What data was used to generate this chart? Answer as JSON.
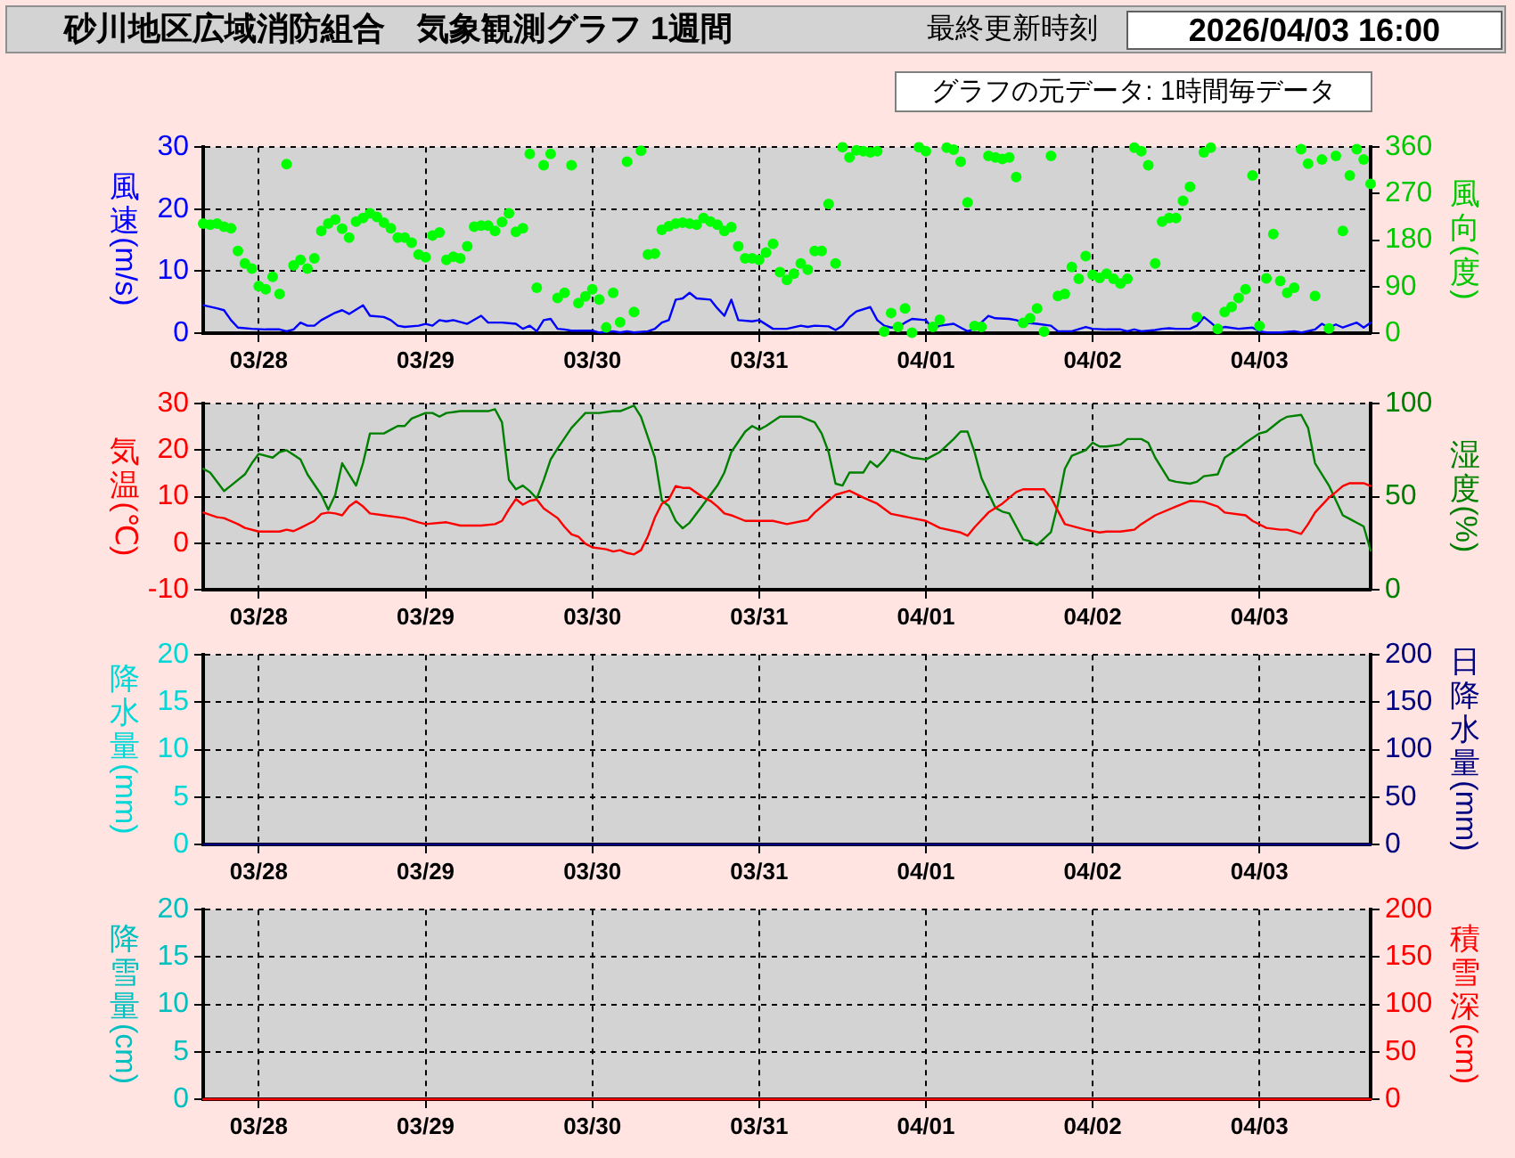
{
  "chart_data": [
    {
      "type": "line",
      "title": "砂川地区広域消防組合　気象観測グラフ 1週間",
      "annotations": [
        "最終更新時刻",
        "2026/04/03 16:00",
        "グラフの元データ: 1時間毎データ"
      ],
      "ylabel": "風速(m/s)",
      "y2label": "風向(度)",
      "xlim": [
        "2026-03-27T16:00",
        "2026-04-03T16:00"
      ],
      "xticks": [
        {
          "value": "2026-03-28",
          "label": "03/28"
        },
        {
          "value": "2026-03-29",
          "label": "03/29"
        },
        {
          "value": "2026-03-30",
          "label": "03/30"
        },
        {
          "value": "2026-03-31",
          "label": "03/31"
        },
        {
          "value": "2026-04-01",
          "label": "04/01"
        },
        {
          "value": "2026-04-02",
          "label": "04/02"
        },
        {
          "value": "2026-04-03",
          "label": "04/03"
        }
      ],
      "ylim": [
        0,
        30
      ],
      "yticks": [
        0,
        10,
        20,
        30
      ],
      "y2lim": [
        0,
        360
      ],
      "y2ticks": [
        0,
        90,
        180,
        270,
        360
      ],
      "grid": true,
      "series": [
        {
          "color": "#0000ff",
          "x": [
            "2026-03-27T16:00",
            "2026-03-27T18:00",
            "2026-03-27T19:00",
            "2026-03-27T20:00",
            "2026-03-27T21:00",
            "2026-03-27T23:00",
            "2026-03-28T01:00",
            "2026-03-28T03:00",
            "2026-03-28T04:00",
            "2026-03-28T05:00",
            "2026-03-28T06:00",
            "2026-03-28T07:00",
            "2026-03-28T08:00",
            "2026-03-28T09:00",
            "2026-03-28T11:00",
            "2026-03-28T12:00",
            "2026-03-28T13:00",
            "2026-03-28T15:00",
            "2026-03-28T16:00",
            "2026-03-28T18:00",
            "2026-03-28T19:00",
            "2026-03-28T20:00",
            "2026-03-28T21:00",
            "2026-03-28T23:00",
            "2026-03-29T00:00",
            "2026-03-29T01:00",
            "2026-03-29T02:00",
            "2026-03-29T03:00",
            "2026-03-29T04:00",
            "2026-03-29T06:00",
            "2026-03-29T08:00",
            "2026-03-29T09:00",
            "2026-03-29T11:00",
            "2026-03-29T13:00",
            "2026-03-29T14:00",
            "2026-03-29T15:00",
            "2026-03-29T16:00",
            "2026-03-29T17:00",
            "2026-03-29T18:00",
            "2026-03-29T19:00",
            "2026-03-29T20:00",
            "2026-03-29T21:00",
            "2026-03-30T00:00",
            "2026-03-30T01:00",
            "2026-03-30T03:00",
            "2026-03-30T04:00",
            "2026-03-30T05:00",
            "2026-03-30T06:00",
            "2026-03-30T08:00",
            "2026-03-30T09:00",
            "2026-03-30T10:00",
            "2026-03-30T11:00",
            "2026-03-30T12:00",
            "2026-03-30T13:00",
            "2026-03-30T14:00",
            "2026-03-30T15:00",
            "2026-03-30T17:00",
            "2026-03-30T18:00",
            "2026-03-30T19:00",
            "2026-03-30T20:00",
            "2026-03-30T21:00",
            "2026-03-30T23:00",
            "2026-03-31T00:00",
            "2026-03-31T02:00",
            "2026-03-31T04:00",
            "2026-03-31T06:00",
            "2026-03-31T07:00",
            "2026-03-31T08:00",
            "2026-03-31T10:00",
            "2026-03-31T11:00",
            "2026-03-31T12:00",
            "2026-03-31T13:00",
            "2026-03-31T14:00",
            "2026-03-31T16:00",
            "2026-03-31T17:00",
            "2026-03-31T18:00",
            "2026-03-31T19:00",
            "2026-03-31T20:00",
            "2026-03-31T21:00",
            "2026-03-31T22:00",
            "2026-04-01T00:00",
            "2026-04-01T01:00",
            "2026-04-01T02:00",
            "2026-04-01T04:00",
            "2026-04-01T05:00",
            "2026-04-01T06:00",
            "2026-04-01T07:00",
            "2026-04-01T09:00",
            "2026-04-01T10:00",
            "2026-04-01T12:00",
            "2026-04-01T13:00",
            "2026-04-01T14:00",
            "2026-04-01T16:00",
            "2026-04-01T18:00",
            "2026-04-01T19:00",
            "2026-04-01T21:00",
            "2026-04-01T23:00",
            "2026-04-02T00:00",
            "2026-04-02T02:00",
            "2026-04-02T04:00",
            "2026-04-02T05:00",
            "2026-04-02T06:00",
            "2026-04-02T07:00",
            "2026-04-02T09:00",
            "2026-04-02T10:00",
            "2026-04-02T11:00",
            "2026-04-02T12:00",
            "2026-04-02T14:00",
            "2026-04-02T15:00",
            "2026-04-02T16:00",
            "2026-04-02T17:00",
            "2026-04-02T18:00",
            "2026-04-02T19:00",
            "2026-04-02T21:00",
            "2026-04-02T23:00",
            "2026-04-03T00:00",
            "2026-04-03T01:00",
            "2026-04-03T03:00",
            "2026-04-03T05:00",
            "2026-04-03T06:00",
            "2026-04-03T08:00",
            "2026-04-03T09:00",
            "2026-04-03T10:00",
            "2026-04-03T11:00",
            "2026-04-03T12:00",
            "2026-04-03T14:00",
            "2026-04-03T15:00",
            "2026-04-03T16:00"
          ],
          "values": [
            4.5,
            4.0,
            3.7,
            2.1,
            0.9,
            0.7,
            0.6,
            0.6,
            0.3,
            0.6,
            1.7,
            1.2,
            1.2,
            2.1,
            3.3,
            3.7,
            3.1,
            4.5,
            2.8,
            2.6,
            2.1,
            1.2,
            1.0,
            1.2,
            1.5,
            1.2,
            2.1,
            1.9,
            2.1,
            1.5,
            2.8,
            1.7,
            1.7,
            1.5,
            0.7,
            1.2,
            0.3,
            2.1,
            2.3,
            0.7,
            0.6,
            0.4,
            0.4,
            0.1,
            0.3,
            0.1,
            0.3,
            0.1,
            0.3,
            0.7,
            1.7,
            2.1,
            5.4,
            5.6,
            6.5,
            5.6,
            5.4,
            4.0,
            2.8,
            5.4,
            2.1,
            1.9,
            2.1,
            0.7,
            0.7,
            1.2,
            1.0,
            1.2,
            1.1,
            0.5,
            1.2,
            2.6,
            3.5,
            4.2,
            2.1,
            1.2,
            0.9,
            1.0,
            1.7,
            2.3,
            2.1,
            0.7,
            1.2,
            1.5,
            0.9,
            0.3,
            0.7,
            2.8,
            2.4,
            2.3,
            2.1,
            1.7,
            1.5,
            1.2,
            0.3,
            0.3,
            1.0,
            0.7,
            0.6,
            0.6,
            0.3,
            0.6,
            0.3,
            0.5,
            0.7,
            0.8,
            0.7,
            0.7,
            1.2,
            2.6,
            1.7,
            0.7,
            1.0,
            0.7,
            0.9,
            0.3,
            0.1,
            0.1,
            0.3,
            0.1,
            0.6,
            1.5,
            0.9,
            1.4,
            0.9,
            1.7,
            0.9,
            1.7
          ]
        },
        {
          "type": "scatter",
          "axis": "y2",
          "marker": "circle",
          "color": "#00ff00",
          "x": [
            "2026-03-27T16:00",
            "2026-03-27T17:00",
            "2026-03-27T18:00",
            "2026-03-27T19:00",
            "2026-03-27T20:00",
            "2026-03-27T21:00",
            "2026-03-27T22:00",
            "2026-03-27T23:00",
            "2026-03-28T00:00",
            "2026-03-28T01:00",
            "2026-03-28T02:00",
            "2026-03-28T03:00",
            "2026-03-28T04:00",
            "2026-03-28T05:00",
            "2026-03-28T06:00",
            "2026-03-28T07:00",
            "2026-03-28T08:00",
            "2026-03-28T09:00",
            "2026-03-28T10:00",
            "2026-03-28T11:00",
            "2026-03-28T12:00",
            "2026-03-28T13:00",
            "2026-03-28T14:00",
            "2026-03-28T15:00",
            "2026-03-28T16:00",
            "2026-03-28T17:00",
            "2026-03-28T18:00",
            "2026-03-28T19:00",
            "2026-03-28T20:00",
            "2026-03-28T21:00",
            "2026-03-28T22:00",
            "2026-03-28T23:00",
            "2026-03-29T00:00",
            "2026-03-29T01:00",
            "2026-03-29T02:00",
            "2026-03-29T03:00",
            "2026-03-29T04:00",
            "2026-03-29T05:00",
            "2026-03-29T06:00",
            "2026-03-29T07:00",
            "2026-03-29T08:00",
            "2026-03-29T09:00",
            "2026-03-29T10:00",
            "2026-03-29T11:00",
            "2026-03-29T12:00",
            "2026-03-29T13:00",
            "2026-03-29T14:00",
            "2026-03-29T15:00",
            "2026-03-29T16:00",
            "2026-03-29T17:00",
            "2026-03-29T18:00",
            "2026-03-29T19:00",
            "2026-03-29T20:00",
            "2026-03-29T21:00",
            "2026-03-29T22:00",
            "2026-03-29T23:00",
            "2026-03-30T00:00",
            "2026-03-30T01:00",
            "2026-03-30T02:00",
            "2026-03-30T03:00",
            "2026-03-30T04:00",
            "2026-03-30T05:00",
            "2026-03-30T06:00",
            "2026-03-30T07:00",
            "2026-03-30T08:00",
            "2026-03-30T09:00",
            "2026-03-30T10:00",
            "2026-03-30T11:00",
            "2026-03-30T12:00",
            "2026-03-30T13:00",
            "2026-03-30T14:00",
            "2026-03-30T15:00",
            "2026-03-30T16:00",
            "2026-03-30T17:00",
            "2026-03-30T18:00",
            "2026-03-30T19:00",
            "2026-03-30T20:00",
            "2026-03-30T21:00",
            "2026-03-30T22:00",
            "2026-03-30T23:00",
            "2026-03-31T00:00",
            "2026-03-31T01:00",
            "2026-03-31T02:00",
            "2026-03-31T03:00",
            "2026-03-31T04:00",
            "2026-03-31T05:00",
            "2026-03-31T06:00",
            "2026-03-31T07:00",
            "2026-03-31T08:00",
            "2026-03-31T09:00",
            "2026-03-31T10:00",
            "2026-03-31T11:00",
            "2026-03-31T12:00",
            "2026-03-31T13:00",
            "2026-03-31T14:00",
            "2026-03-31T15:00",
            "2026-03-31T16:00",
            "2026-03-31T17:00",
            "2026-03-31T18:00",
            "2026-03-31T19:00",
            "2026-03-31T20:00",
            "2026-03-31T21:00",
            "2026-03-31T22:00",
            "2026-03-31T23:00",
            "2026-04-01T00:00",
            "2026-04-01T01:00",
            "2026-04-01T02:00",
            "2026-04-01T03:00",
            "2026-04-01T04:00",
            "2026-04-01T05:00",
            "2026-04-01T06:00",
            "2026-04-01T07:00",
            "2026-04-01T08:00",
            "2026-04-01T09:00",
            "2026-04-01T10:00",
            "2026-04-01T11:00",
            "2026-04-01T12:00",
            "2026-04-01T13:00",
            "2026-04-01T14:00",
            "2026-04-01T15:00",
            "2026-04-01T16:00",
            "2026-04-01T17:00",
            "2026-04-01T18:00",
            "2026-04-01T19:00",
            "2026-04-01T20:00",
            "2026-04-01T21:00",
            "2026-04-01T22:00",
            "2026-04-01T23:00",
            "2026-04-02T00:00",
            "2026-04-02T01:00",
            "2026-04-02T02:00",
            "2026-04-02T03:00",
            "2026-04-02T04:00",
            "2026-04-02T05:00",
            "2026-04-02T06:00",
            "2026-04-02T07:00",
            "2026-04-02T08:00",
            "2026-04-02T09:00",
            "2026-04-02T10:00",
            "2026-04-02T11:00",
            "2026-04-02T12:00",
            "2026-04-02T13:00",
            "2026-04-02T14:00",
            "2026-04-02T15:00",
            "2026-04-02T16:00",
            "2026-04-02T17:00",
            "2026-04-02T18:00",
            "2026-04-02T19:00",
            "2026-04-02T20:00",
            "2026-04-02T21:00",
            "2026-04-02T22:00",
            "2026-04-02T23:00",
            "2026-04-03T00:00",
            "2026-04-03T01:00",
            "2026-04-03T02:00",
            "2026-04-03T03:00",
            "2026-04-03T04:00",
            "2026-04-03T05:00",
            "2026-04-03T06:00",
            "2026-04-03T07:00",
            "2026-04-03T08:00",
            "2026-04-03T09:00",
            "2026-04-03T10:00",
            "2026-04-03T11:00",
            "2026-04-03T12:00",
            "2026-04-03T13:00",
            "2026-04-03T14:00",
            "2026-04-03T15:00",
            "2026-04-03T16:00"
          ],
          "values": [
            212,
            210,
            212,
            206,
            203,
            159,
            135,
            125,
            91,
            85,
            109,
            76,
            327,
            131,
            142,
            125,
            145,
            198,
            212,
            220,
            202,
            185,
            216,
            223,
            232,
            225,
            214,
            203,
            185,
            185,
            175,
            152,
            147,
            189,
            195,
            142,
            148,
            145,
            168,
            206,
            208,
            208,
            198,
            215,
            232,
            196,
            203,
            347,
            88,
            325,
            347,
            68,
            78,
            325,
            58,
            71,
            85,
            65,
            11,
            78,
            21,
            332,
            41,
            353,
            152,
            154,
            200,
            207,
            212,
            214,
            212,
            210,
            223,
            216,
            210,
            198,
            205,
            168,
            145,
            145,
            142,
            156,
            173,
            118,
            103,
            115,
            135,
            123,
            159,
            159,
            250,
            135,
            360,
            340,
            354,
            352,
            350,
            352,
            3,
            39,
            12,
            48,
            1,
            360,
            352,
            12,
            26,
            359,
            355,
            332,
            253,
            14,
            12,
            343,
            340,
            337,
            340,
            302,
            20,
            29,
            48,
            3,
            343,
            72,
            76,
            128,
            105,
            149,
            113,
            107,
            115,
            105,
            96,
            105,
            359,
            352,
            325,
            135,
            216,
            223,
            223,
            256,
            283,
            31,
            350,
            359,
            8,
            41,
            51,
            68,
            85,
            305,
            14,
            106,
            192,
            101,
            78,
            88,
            356,
            328,
            72,
            336,
            9,
            343,
            198,
            305,
            356,
            336,
            289
          ]
        }
      ]
    },
    {
      "type": "line",
      "ylabel": "気温(℃)",
      "y2label": "湿度(%)",
      "xlim": [
        "2026-03-27T16:00",
        "2026-04-03T16:00"
      ],
      "xticks": [
        {
          "value": "2026-03-28",
          "label": "03/28"
        },
        {
          "value": "2026-03-29",
          "label": "03/29"
        },
        {
          "value": "2026-03-30",
          "label": "03/30"
        },
        {
          "value": "2026-03-31",
          "label": "03/31"
        },
        {
          "value": "2026-04-01",
          "label": "04/01"
        },
        {
          "value": "2026-04-02",
          "label": "04/02"
        },
        {
          "value": "2026-04-03",
          "label": "04/03"
        }
      ],
      "ylim": [
        -10,
        30
      ],
      "yticks": [
        -10,
        0,
        10,
        20,
        30
      ],
      "y2lim": [
        0,
        100
      ],
      "y2ticks": [
        0,
        50,
        100
      ],
      "grid": true,
      "series": [
        {
          "color": "#ff0000",
          "x": [
            "2026-03-27T16:00",
            "2026-03-27T18:00",
            "2026-03-27T19:00",
            "2026-03-27T21:00",
            "2026-03-27T22:00",
            "2026-03-28T00:00",
            "2026-03-28T03:00",
            "2026-03-28T04:00",
            "2026-03-28T05:00",
            "2026-03-28T06:00",
            "2026-03-28T08:00",
            "2026-03-28T09:00",
            "2026-03-28T10:00",
            "2026-03-28T11:00",
            "2026-03-28T12:00",
            "2026-03-28T13:00",
            "2026-03-28T14:00",
            "2026-03-28T15:00",
            "2026-03-28T16:00",
            "2026-03-28T18:00",
            "2026-03-28T21:00",
            "2026-03-28T23:00",
            "2026-03-29T00:00",
            "2026-03-29T03:00",
            "2026-03-29T05:00",
            "2026-03-29T08:00",
            "2026-03-29T10:00",
            "2026-03-29T11:00",
            "2026-03-29T12:00",
            "2026-03-29T13:00",
            "2026-03-29T14:00",
            "2026-03-29T15:00",
            "2026-03-29T16:00",
            "2026-03-29T17:00",
            "2026-03-29T19:00",
            "2026-03-29T20:00",
            "2026-03-29T21:00",
            "2026-03-29T22:00",
            "2026-03-29T23:00",
            "2026-03-30T00:00",
            "2026-03-30T02:00",
            "2026-03-30T03:00",
            "2026-03-30T04:00",
            "2026-03-30T05:00",
            "2026-03-30T06:00",
            "2026-03-30T07:00",
            "2026-03-30T08:00",
            "2026-03-30T09:00",
            "2026-03-30T10:00",
            "2026-03-30T11:00",
            "2026-03-30T12:00",
            "2026-03-30T13:00",
            "2026-03-30T14:00",
            "2026-03-30T16:00",
            "2026-03-30T17:00",
            "2026-03-30T18:00",
            "2026-03-30T19:00",
            "2026-03-30T20:00",
            "2026-03-30T22:00",
            "2026-03-31T00:00",
            "2026-03-31T02:00",
            "2026-03-31T04:00",
            "2026-03-31T07:00",
            "2026-03-31T08:00",
            "2026-03-31T11:00",
            "2026-03-31T13:00",
            "2026-03-31T15:00",
            "2026-03-31T17:00",
            "2026-03-31T19:00",
            "2026-03-31T22:00",
            "2026-04-01T00:00",
            "2026-04-01T02:00",
            "2026-04-01T05:00",
            "2026-04-01T06:00",
            "2026-04-01T07:00",
            "2026-04-01T09:00",
            "2026-04-01T11:00",
            "2026-04-01T13:00",
            "2026-04-01T14:00",
            "2026-04-01T17:00",
            "2026-04-01T18:00",
            "2026-04-01T20:00",
            "2026-04-01T22:00",
            "2026-04-01T23:00",
            "2026-04-02T01:00",
            "2026-04-02T02:00",
            "2026-04-02T04:00",
            "2026-04-02T06:00",
            "2026-04-02T07:00",
            "2026-04-02T09:00",
            "2026-04-02T12:00",
            "2026-04-02T14:00",
            "2026-04-02T16:00",
            "2026-04-02T18:00",
            "2026-04-02T19:00",
            "2026-04-02T22:00",
            "2026-04-02T23:00",
            "2026-04-03T01:00",
            "2026-04-03T03:00",
            "2026-04-03T04:00",
            "2026-04-03T06:00",
            "2026-04-03T07:00",
            "2026-04-03T08:00",
            "2026-04-03T10:00",
            "2026-04-03T11:00",
            "2026-04-03T12:00",
            "2026-04-03T13:00",
            "2026-04-03T15:00",
            "2026-04-03T16:00"
          ],
          "values": [
            6.6,
            5.6,
            5.4,
            4.1,
            3.3,
            2.5,
            2.5,
            2.9,
            2.6,
            3.3,
            4.8,
            6.3,
            6.6,
            6.4,
            6.0,
            7.9,
            9.0,
            7.9,
            6.4,
            6.0,
            5.4,
            4.5,
            4.1,
            4.5,
            3.8,
            3.8,
            4.1,
            4.8,
            7.3,
            9.5,
            8.3,
            9.1,
            9.4,
            7.5,
            5.4,
            3.5,
            1.9,
            1.4,
            -0.1,
            -0.9,
            -1.3,
            -1.8,
            -1.5,
            -2.1,
            -2.4,
            -1.5,
            1.5,
            5.5,
            8.5,
            9.4,
            12.3,
            11.9,
            11.9,
            9.8,
            9.1,
            7.9,
            6.4,
            6.0,
            4.8,
            4.8,
            4.8,
            4.1,
            5.0,
            6.6,
            10.4,
            11.3,
            9.8,
            8.5,
            6.3,
            5.4,
            4.8,
            3.3,
            2.3,
            1.6,
            3.4,
            6.6,
            8.5,
            11.0,
            11.6,
            11.6,
            9.8,
            4.1,
            3.3,
            2.9,
            2.3,
            2.5,
            2.5,
            2.9,
            4.1,
            6.0,
            7.9,
            9.1,
            8.9,
            7.9,
            6.6,
            6.0,
            4.8,
            3.3,
            2.9,
            2.9,
            2.0,
            4.1,
            6.6,
            9.8,
            11.0,
            12.3,
            12.9,
            12.9,
            12.3
          ]
        },
        {
          "axis": "y2",
          "color": "#008000",
          "x": [
            "2026-03-27T16:00",
            "2026-03-27T17:00",
            "2026-03-27T19:00",
            "2026-03-27T20:00",
            "2026-03-27T22:00",
            "2026-03-27T23:00",
            "2026-03-28T00:00",
            "2026-03-28T02:00",
            "2026-03-28T03:00",
            "2026-03-28T04:00",
            "2026-03-28T06:00",
            "2026-03-28T07:00",
            "2026-03-28T09:00",
            "2026-03-28T10:00",
            "2026-03-28T11:00",
            "2026-03-28T12:00",
            "2026-03-28T13:00",
            "2026-03-28T14:00",
            "2026-03-28T15:00",
            "2026-03-28T16:00",
            "2026-03-28T18:00",
            "2026-03-28T19:00",
            "2026-03-28T20:00",
            "2026-03-28T21:00",
            "2026-03-28T22:00",
            "2026-03-29T00:00",
            "2026-03-29T01:00",
            "2026-03-29T02:00",
            "2026-03-29T03:00",
            "2026-03-29T05:00",
            "2026-03-29T08:00",
            "2026-03-29T09:00",
            "2026-03-29T10:00",
            "2026-03-29T11:00",
            "2026-03-29T12:00",
            "2026-03-29T13:00",
            "2026-03-29T14:00",
            "2026-03-29T15:00",
            "2026-03-29T16:00",
            "2026-03-29T17:00",
            "2026-03-29T18:00",
            "2026-03-29T19:00",
            "2026-03-29T21:00",
            "2026-03-29T22:00",
            "2026-03-29T23:00",
            "2026-03-30T01:00",
            "2026-03-30T03:00",
            "2026-03-30T04:00",
            "2026-03-30T06:00",
            "2026-03-30T07:00",
            "2026-03-30T09:00",
            "2026-03-30T10:00",
            "2026-03-30T11:00",
            "2026-03-30T12:00",
            "2026-03-30T13:00",
            "2026-03-30T14:00",
            "2026-03-30T16:00",
            "2026-03-30T18:00",
            "2026-03-30T19:00",
            "2026-03-30T20:00",
            "2026-03-30T22:00",
            "2026-03-30T23:00",
            "2026-03-31T00:00",
            "2026-03-31T01:00",
            "2026-03-31T03:00",
            "2026-03-31T04:00",
            "2026-03-31T06:00",
            "2026-03-31T08:00",
            "2026-03-31T09:00",
            "2026-03-31T10:00",
            "2026-03-31T11:00",
            "2026-03-31T12:00",
            "2026-03-31T13:00",
            "2026-03-31T15:00",
            "2026-03-31T16:00",
            "2026-03-31T17:00",
            "2026-03-31T18:00",
            "2026-03-31T19:00",
            "2026-03-31T20:00",
            "2026-03-31T22:00",
            "2026-04-01T00:00",
            "2026-04-01T01:00",
            "2026-04-01T02:00",
            "2026-04-01T04:00",
            "2026-04-01T05:00",
            "2026-04-01T06:00",
            "2026-04-01T07:00",
            "2026-04-01T08:00",
            "2026-04-01T10:00",
            "2026-04-01T11:00",
            "2026-04-01T12:00",
            "2026-04-01T13:00",
            "2026-04-01T14:00",
            "2026-04-01T15:00",
            "2026-04-01T16:00",
            "2026-04-01T18:00",
            "2026-04-01T19:00",
            "2026-04-01T20:00",
            "2026-04-01T21:00",
            "2026-04-01T23:00",
            "2026-04-02T00:00",
            "2026-04-02T01:00",
            "2026-04-02T02:00",
            "2026-04-02T04:00",
            "2026-04-02T05:00",
            "2026-04-02T07:00",
            "2026-04-02T08:00",
            "2026-04-02T09:00",
            "2026-04-02T11:00",
            "2026-04-02T12:00",
            "2026-04-02T14:00",
            "2026-04-02T15:00",
            "2026-04-02T16:00",
            "2026-04-02T18:00",
            "2026-04-02T19:00",
            "2026-04-02T21:00",
            "2026-04-02T22:00",
            "2026-04-03T00:00",
            "2026-04-03T01:00",
            "2026-04-03T03:00",
            "2026-04-03T04:00",
            "2026-04-03T06:00",
            "2026-04-03T07:00",
            "2026-04-03T08:00",
            "2026-04-03T10:00",
            "2026-04-03T11:00",
            "2026-04-03T12:00",
            "2026-04-03T13:00",
            "2026-04-03T15:00",
            "2026-04-03T16:00"
          ],
          "values": [
            65,
            63,
            53,
            56,
            62,
            68,
            73,
            71,
            74,
            75,
            70,
            62,
            51,
            43,
            51,
            68,
            62,
            56,
            68,
            84,
            84,
            86,
            88,
            88,
            92,
            95,
            95,
            93,
            95,
            96,
            96,
            96,
            97,
            90,
            59,
            54,
            56,
            53,
            49,
            59,
            70,
            76,
            87,
            91,
            95,
            95,
            96,
            96,
            99,
            93,
            71,
            48,
            45,
            37,
            33,
            36,
            46,
            56,
            63,
            74,
            85,
            88,
            86,
            88,
            93,
            93,
            93,
            90,
            84,
            74,
            57,
            56,
            63,
            63,
            69,
            66,
            70,
            75,
            74,
            71,
            70,
            72,
            74,
            81,
            85,
            85,
            74,
            60,
            44,
            42,
            41,
            34,
            27,
            26,
            24,
            31,
            46,
            65,
            72,
            75,
            79,
            77,
            77,
            78,
            81,
            81,
            79,
            71,
            59,
            58,
            57,
            58,
            61,
            62,
            71,
            76,
            79,
            84,
            85,
            91,
            93,
            94,
            87,
            68,
            56,
            48,
            40,
            38,
            34,
            21
          ]
        }
      ]
    },
    {
      "type": "line",
      "ylabel": "降水量(mm)",
      "y2label": "日降水量(mm)",
      "xlim": [
        "2026-03-27T16:00",
        "2026-04-03T16:00"
      ],
      "xticks": [
        {
          "value": "2026-03-28",
          "label": "03/28"
        },
        {
          "value": "2026-03-29",
          "label": "03/29"
        },
        {
          "value": "2026-03-30",
          "label": "03/30"
        },
        {
          "value": "2026-03-31",
          "label": "03/31"
        },
        {
          "value": "2026-04-01",
          "label": "04/01"
        },
        {
          "value": "2026-04-02",
          "label": "04/02"
        },
        {
          "value": "2026-04-03",
          "label": "04/03"
        }
      ],
      "ylim": [
        0,
        20
      ],
      "yticks": [
        0,
        5,
        10,
        15,
        20
      ],
      "y2lim": [
        0,
        200
      ],
      "y2ticks": [
        0,
        50,
        100,
        150,
        200
      ],
      "grid": true,
      "series": [
        {
          "axis": "y2",
          "color": "#000080",
          "x": [
            "2026-03-27T16:00",
            "2026-04-03T16:00"
          ],
          "values": [
            0,
            0
          ]
        }
      ]
    },
    {
      "type": "line",
      "ylabel": "降雪量(cm)",
      "y2label": "積雪深(cm)",
      "xlim": [
        "2026-03-27T16:00",
        "2026-04-03T16:00"
      ],
      "xticks": [
        {
          "value": "2026-03-28",
          "label": "03/28"
        },
        {
          "value": "2026-03-29",
          "label": "03/29"
        },
        {
          "value": "2026-03-30",
          "label": "03/30"
        },
        {
          "value": "2026-03-31",
          "label": "03/31"
        },
        {
          "value": "2026-04-01",
          "label": "04/01"
        },
        {
          "value": "2026-04-02",
          "label": "04/02"
        },
        {
          "value": "2026-04-03",
          "label": "04/03"
        }
      ],
      "ylim": [
        0,
        20
      ],
      "yticks": [
        0,
        5,
        10,
        15,
        20
      ],
      "y2lim": [
        0,
        200
      ],
      "y2ticks": [
        0,
        50,
        100,
        150,
        200
      ],
      "grid": true,
      "series": [
        {
          "axis": "y2",
          "color": "#ff0000",
          "x": [
            "2026-03-27T16:00",
            "2026-04-03T16:00"
          ],
          "values": [
            0,
            0
          ]
        }
      ]
    }
  ]
}
